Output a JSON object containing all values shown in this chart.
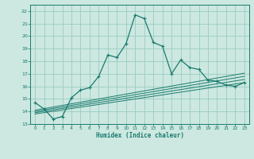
{
  "title": "",
  "xlabel": "Humidex (Indice chaleur)",
  "ylabel": "",
  "xlim": [
    -0.5,
    23.5
  ],
  "ylim": [
    13,
    22.5
  ],
  "xticks": [
    0,
    1,
    2,
    3,
    4,
    5,
    6,
    7,
    8,
    9,
    10,
    11,
    12,
    13,
    14,
    15,
    16,
    17,
    18,
    19,
    20,
    21,
    22,
    23
  ],
  "yticks": [
    13,
    14,
    15,
    16,
    17,
    18,
    19,
    20,
    21,
    22
  ],
  "bg_color": "#cce8e0",
  "grid_color": "#99ccc0",
  "line_color": "#1a7a6e",
  "main_line_x": [
    0,
    1,
    2,
    3,
    4,
    5,
    6,
    7,
    8,
    9,
    10,
    11,
    12,
    13,
    14,
    15,
    16,
    17,
    18,
    19,
    20,
    21,
    22,
    23
  ],
  "main_line_y": [
    14.7,
    14.2,
    13.4,
    13.6,
    15.1,
    15.7,
    15.9,
    16.8,
    18.5,
    18.3,
    19.4,
    21.7,
    21.4,
    19.5,
    19.2,
    17.0,
    18.1,
    17.5,
    17.35,
    16.5,
    16.4,
    16.1,
    16.0,
    16.3
  ],
  "straight_lines": [
    {
      "x": [
        0,
        23
      ],
      "y": [
        13.8,
        16.3
      ]
    },
    {
      "x": [
        0,
        23
      ],
      "y": [
        13.9,
        16.55
      ]
    },
    {
      "x": [
        0,
        23
      ],
      "y": [
        14.0,
        16.8
      ]
    },
    {
      "x": [
        0,
        23
      ],
      "y": [
        14.1,
        17.05
      ]
    }
  ]
}
